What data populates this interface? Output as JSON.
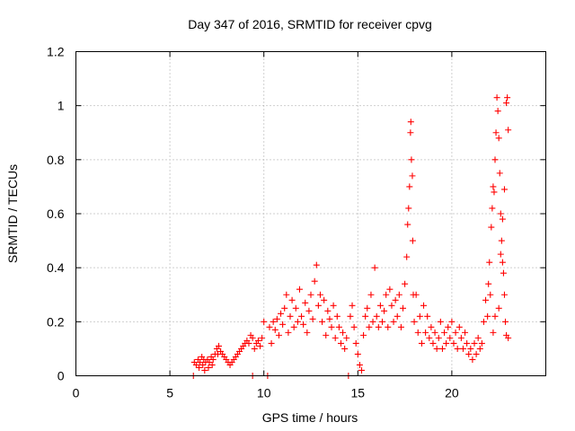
{
  "chart_data": {
    "type": "scatter",
    "title": "Day 347 of 2016, SRMTID for receiver cpvg",
    "xlabel": "GPS time / hours",
    "ylabel": "SRMTID / TECUs",
    "xlim": [
      0,
      25
    ],
    "ylim": [
      0,
      1.2
    ],
    "xticks": [
      0,
      5,
      10,
      15,
      20
    ],
    "xtick_labels": [
      "0",
      "5",
      "10",
      "15",
      "20"
    ],
    "yticks": [
      0,
      0.2,
      0.4,
      0.6,
      0.8,
      1.0,
      1.2
    ],
    "ytick_labels": [
      "0",
      "0.2",
      "0.4",
      "0.6",
      "0.8",
      "1",
      "1.2"
    ],
    "grid": true,
    "marker": "plus",
    "series": [
      {
        "name": "SRMTID",
        "color": "#ff0000",
        "points": [
          [
            6.25,
            0.0
          ],
          [
            6.3,
            0.05
          ],
          [
            6.4,
            0.04
          ],
          [
            6.5,
            0.06
          ],
          [
            6.55,
            0.03
          ],
          [
            6.6,
            0.05
          ],
          [
            6.7,
            0.07
          ],
          [
            6.75,
            0.04
          ],
          [
            6.8,
            0.06
          ],
          [
            6.85,
            0.02
          ],
          [
            6.9,
            0.05
          ],
          [
            7.0,
            0.06
          ],
          [
            7.05,
            0.03
          ],
          [
            7.1,
            0.05
          ],
          [
            7.2,
            0.07
          ],
          [
            7.25,
            0.04
          ],
          [
            7.3,
            0.06
          ],
          [
            7.4,
            0.08
          ],
          [
            7.5,
            0.1
          ],
          [
            7.55,
            0.08
          ],
          [
            7.6,
            0.11
          ],
          [
            7.7,
            0.09
          ],
          [
            7.8,
            0.08
          ],
          [
            7.9,
            0.07
          ],
          [
            8.0,
            0.06
          ],
          [
            8.1,
            0.05
          ],
          [
            8.2,
            0.04
          ],
          [
            8.3,
            0.05
          ],
          [
            8.4,
            0.06
          ],
          [
            8.5,
            0.07
          ],
          [
            8.6,
            0.08
          ],
          [
            8.7,
            0.09
          ],
          [
            8.8,
            0.1
          ],
          [
            8.9,
            0.11
          ],
          [
            9.0,
            0.12
          ],
          [
            9.1,
            0.13
          ],
          [
            9.2,
            0.12
          ],
          [
            9.3,
            0.15
          ],
          [
            9.4,
            0.14
          ],
          [
            9.5,
            0.1
          ],
          [
            9.6,
            0.12
          ],
          [
            9.7,
            0.13
          ],
          [
            9.8,
            0.11
          ],
          [
            9.9,
            0.14
          ],
          [
            10.0,
            0.2
          ],
          [
            9.4,
            0.0
          ],
          [
            10.2,
            0.0
          ],
          [
            10.3,
            0.18
          ],
          [
            10.4,
            0.12
          ],
          [
            10.5,
            0.2
          ],
          [
            10.6,
            0.17
          ],
          [
            10.7,
            0.21
          ],
          [
            10.8,
            0.15
          ],
          [
            10.9,
            0.23
          ],
          [
            11.0,
            0.19
          ],
          [
            11.1,
            0.25
          ],
          [
            11.2,
            0.3
          ],
          [
            11.3,
            0.16
          ],
          [
            11.4,
            0.22
          ],
          [
            11.5,
            0.28
          ],
          [
            11.6,
            0.18
          ],
          [
            11.7,
            0.25
          ],
          [
            11.8,
            0.2
          ],
          [
            11.9,
            0.32
          ],
          [
            12.0,
            0.22
          ],
          [
            12.1,
            0.19
          ],
          [
            12.2,
            0.27
          ],
          [
            12.3,
            0.16
          ],
          [
            12.4,
            0.24
          ],
          [
            12.5,
            0.3
          ],
          [
            12.6,
            0.21
          ],
          [
            12.7,
            0.35
          ],
          [
            12.8,
            0.41
          ],
          [
            12.9,
            0.26
          ],
          [
            13.0,
            0.3
          ],
          [
            13.1,
            0.2
          ],
          [
            13.2,
            0.28
          ],
          [
            13.3,
            0.15
          ],
          [
            13.4,
            0.24
          ],
          [
            13.5,
            0.21
          ],
          [
            13.6,
            0.18
          ],
          [
            13.7,
            0.26
          ],
          [
            13.8,
            0.14
          ],
          [
            13.9,
            0.22
          ],
          [
            14.0,
            0.18
          ],
          [
            14.1,
            0.12
          ],
          [
            14.2,
            0.16
          ],
          [
            14.3,
            0.1
          ],
          [
            14.4,
            0.14
          ],
          [
            14.5,
            0.0
          ],
          [
            14.6,
            0.22
          ],
          [
            14.7,
            0.26
          ],
          [
            14.8,
            0.18
          ],
          [
            14.9,
            0.12
          ],
          [
            15.0,
            0.08
          ],
          [
            15.1,
            0.04
          ],
          [
            15.2,
            0.02
          ],
          [
            15.3,
            0.15
          ],
          [
            15.4,
            0.22
          ],
          [
            15.5,
            0.25
          ],
          [
            15.6,
            0.18
          ],
          [
            15.7,
            0.3
          ],
          [
            15.8,
            0.2
          ],
          [
            15.9,
            0.4
          ],
          [
            16.0,
            0.22
          ],
          [
            16.1,
            0.18
          ],
          [
            16.2,
            0.26
          ],
          [
            16.3,
            0.2
          ],
          [
            16.4,
            0.24
          ],
          [
            16.5,
            0.3
          ],
          [
            16.6,
            0.18
          ],
          [
            16.7,
            0.32
          ],
          [
            16.8,
            0.26
          ],
          [
            16.9,
            0.2
          ],
          [
            17.0,
            0.28
          ],
          [
            17.1,
            0.22
          ],
          [
            17.2,
            0.3
          ],
          [
            17.3,
            0.18
          ],
          [
            17.4,
            0.25
          ],
          [
            17.5,
            0.34
          ],
          [
            17.6,
            0.44
          ],
          [
            17.65,
            0.56
          ],
          [
            17.7,
            0.62
          ],
          [
            17.75,
            0.7
          ],
          [
            17.8,
            0.9
          ],
          [
            17.82,
            0.94
          ],
          [
            17.85,
            0.8
          ],
          [
            17.9,
            0.74
          ],
          [
            17.92,
            0.5
          ],
          [
            17.95,
            0.3
          ],
          [
            18.0,
            0.2
          ],
          [
            18.1,
            0.3
          ],
          [
            18.2,
            0.16
          ],
          [
            18.3,
            0.22
          ],
          [
            18.4,
            0.12
          ],
          [
            18.5,
            0.26
          ],
          [
            18.6,
            0.16
          ],
          [
            18.7,
            0.22
          ],
          [
            18.8,
            0.14
          ],
          [
            18.9,
            0.18
          ],
          [
            19.0,
            0.12
          ],
          [
            19.1,
            0.16
          ],
          [
            19.2,
            0.1
          ],
          [
            19.3,
            0.14
          ],
          [
            19.4,
            0.2
          ],
          [
            19.5,
            0.1
          ],
          [
            19.6,
            0.16
          ],
          [
            19.7,
            0.12
          ],
          [
            19.8,
            0.18
          ],
          [
            19.9,
            0.14
          ],
          [
            20.0,
            0.2
          ],
          [
            20.1,
            0.12
          ],
          [
            20.2,
            0.16
          ],
          [
            20.3,
            0.1
          ],
          [
            20.4,
            0.18
          ],
          [
            20.5,
            0.14
          ],
          [
            20.6,
            0.1
          ],
          [
            20.7,
            0.16
          ],
          [
            20.8,
            0.12
          ],
          [
            20.9,
            0.08
          ],
          [
            21.0,
            0.1
          ],
          [
            21.1,
            0.06
          ],
          [
            21.2,
            0.12
          ],
          [
            21.3,
            0.08
          ],
          [
            21.4,
            0.14
          ],
          [
            21.5,
            0.1
          ],
          [
            21.6,
            0.12
          ],
          [
            21.7,
            0.2
          ],
          [
            21.8,
            0.28
          ],
          [
            21.9,
            0.22
          ],
          [
            21.95,
            0.34
          ],
          [
            22.0,
            0.42
          ],
          [
            22.05,
            0.3
          ],
          [
            22.1,
            0.55
          ],
          [
            22.15,
            0.62
          ],
          [
            22.2,
            0.7
          ],
          [
            22.25,
            0.68
          ],
          [
            22.3,
            0.8
          ],
          [
            22.35,
            0.9
          ],
          [
            22.4,
            1.03
          ],
          [
            22.45,
            0.98
          ],
          [
            22.5,
            0.88
          ],
          [
            22.55,
            0.75
          ],
          [
            22.6,
            0.6
          ],
          [
            22.65,
            0.5
          ],
          [
            22.7,
            0.42
          ],
          [
            22.75,
            0.38
          ],
          [
            22.8,
            0.3
          ],
          [
            22.85,
            0.2
          ],
          [
            22.9,
            0.15
          ],
          [
            22.95,
            1.03
          ],
          [
            23.0,
            0.91
          ],
          [
            22.9,
            1.01
          ],
          [
            22.8,
            0.69
          ],
          [
            22.7,
            0.58
          ],
          [
            22.6,
            0.45
          ],
          [
            23.0,
            0.14
          ],
          [
            22.5,
            0.25
          ],
          [
            22.3,
            0.22
          ],
          [
            22.2,
            0.16
          ]
        ]
      }
    ]
  }
}
